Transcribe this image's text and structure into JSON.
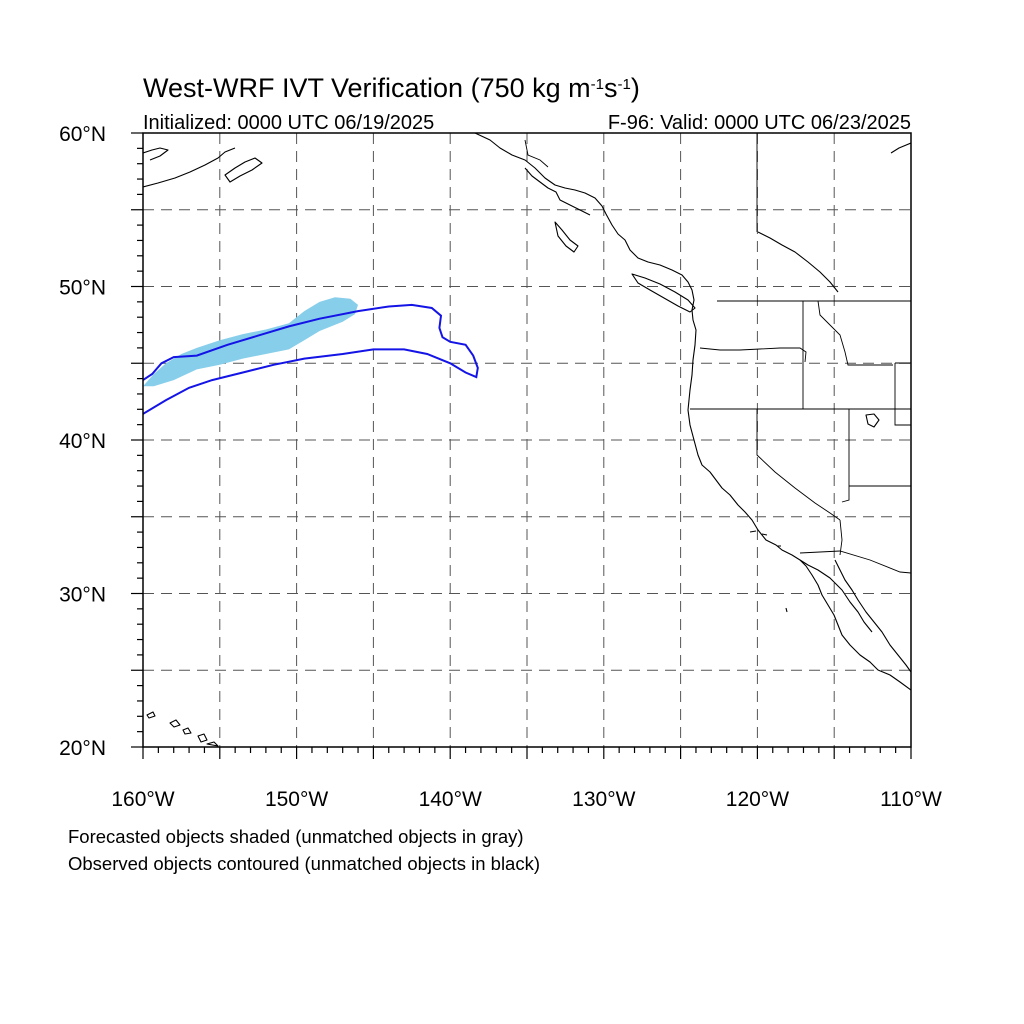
{
  "title": {
    "main": "West-WRF IVT Verification (750 kg m",
    "sup1": "-1",
    "mid": "s",
    "sup2": "-1",
    "end": ")"
  },
  "subtitle_left": "Initialized: 0000 UTC 06/19/2025",
  "subtitle_right": "F-96: Valid: 0000 UTC 06/23/2025",
  "map": {
    "lon_range": [
      -160,
      -110
    ],
    "lat_range": [
      20,
      60
    ],
    "lon_ticks": [
      {
        "lon": -160,
        "label": "160°W"
      },
      {
        "lon": -150,
        "label": "150°W"
      },
      {
        "lon": -140,
        "label": "140°W"
      },
      {
        "lon": -130,
        "label": "130°W"
      },
      {
        "lon": -120,
        "label": "120°W"
      },
      {
        "lon": -110,
        "label": "110°W"
      }
    ],
    "lat_ticks": [
      {
        "lat": 60,
        "label": "60°N"
      },
      {
        "lat": 50,
        "label": "50°N"
      },
      {
        "lat": 40,
        "label": "40°N"
      },
      {
        "lat": 30,
        "label": "30°N"
      },
      {
        "lat": 20,
        "label": "20°N"
      }
    ],
    "grid_lons": [
      -155,
      -150,
      -145,
      -140,
      -135,
      -130,
      -125,
      -120,
      -115
    ],
    "grid_lats": [
      25,
      30,
      35,
      40,
      45,
      50,
      55
    ],
    "colors": {
      "forecast_fill": "#87ceeb",
      "observed_contour": "#1414e6",
      "coastline": "#000000",
      "grid": "#555555"
    },
    "forecast_object": [
      [
        -160,
        43.5
      ],
      [
        -159.3,
        44.3
      ],
      [
        -158.5,
        45.0
      ],
      [
        -157.5,
        45.6
      ],
      [
        -156.5,
        46.0
      ],
      [
        -155.0,
        46.5
      ],
      [
        -153.5,
        46.9
      ],
      [
        -152.0,
        47.2
      ],
      [
        -150.5,
        47.6
      ],
      [
        -149.5,
        48.4
      ],
      [
        -148.5,
        49.0
      ],
      [
        -147.5,
        49.3
      ],
      [
        -146.5,
        49.2
      ],
      [
        -146.0,
        48.8
      ],
      [
        -146.2,
        48.2
      ],
      [
        -147.0,
        47.7
      ],
      [
        -148.5,
        47.1
      ],
      [
        -149.5,
        46.5
      ],
      [
        -150.5,
        45.9
      ],
      [
        -152.0,
        45.6
      ],
      [
        -153.5,
        45.3
      ],
      [
        -155.0,
        44.9
      ],
      [
        -156.5,
        44.6
      ],
      [
        -158.0,
        43.9
      ],
      [
        -159.3,
        43.5
      ]
    ],
    "observed_object": [
      [
        -160,
        41.7
      ],
      [
        -158.5,
        42.6
      ],
      [
        -157.0,
        43.4
      ],
      [
        -155.5,
        43.9
      ],
      [
        -153.5,
        44.4
      ],
      [
        -151.5,
        44.9
      ],
      [
        -149.5,
        45.3
      ],
      [
        -147.0,
        45.6
      ],
      [
        -145.0,
        45.9
      ],
      [
        -143.0,
        45.9
      ],
      [
        -141.5,
        45.6
      ],
      [
        -140.0,
        45.0
      ],
      [
        -139.0,
        44.4
      ],
      [
        -138.3,
        44.1
      ],
      [
        -138.2,
        44.7
      ],
      [
        -138.5,
        45.5
      ],
      [
        -139.0,
        46.2
      ],
      [
        -140.0,
        46.4
      ],
      [
        -140.5,
        46.7
      ],
      [
        -140.7,
        47.3
      ],
      [
        -140.6,
        48.1
      ],
      [
        -141.2,
        48.6
      ],
      [
        -142.5,
        48.8
      ],
      [
        -144.0,
        48.7
      ],
      [
        -146.0,
        48.4
      ],
      [
        -148.5,
        47.9
      ],
      [
        -150.5,
        47.4
      ],
      [
        -152.5,
        46.8
      ],
      [
        -154.5,
        46.2
      ],
      [
        -156.5,
        45.5
      ],
      [
        -158.0,
        45.4
      ],
      [
        -158.8,
        45.0
      ],
      [
        -159.4,
        44.3
      ],
      [
        -160,
        43.9
      ]
    ]
  },
  "captions": [
    "Forecasted objects shaded (unmatched objects in gray)",
    "Observed objects contoured (unmatched objects in black)"
  ]
}
